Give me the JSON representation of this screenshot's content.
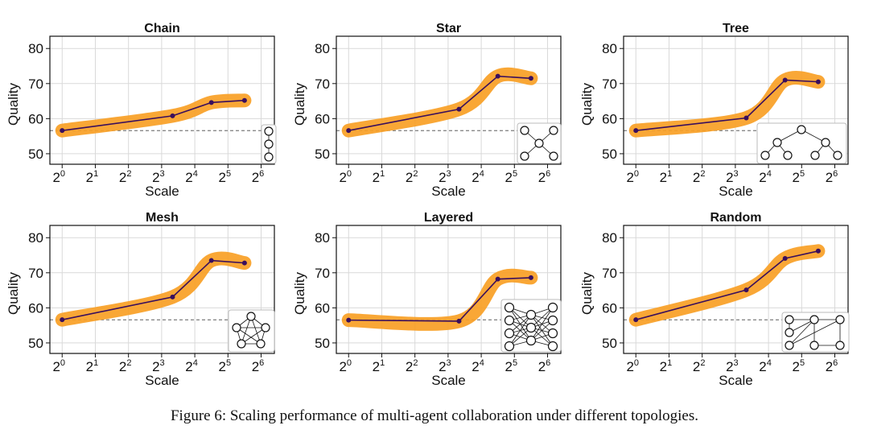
{
  "caption": "Figure 6: Scaling performance of multi-agent collaboration under different topologies.",
  "chart_data": [
    {
      "type": "line",
      "title": "Chain",
      "xlabel": "Scale",
      "ylabel": "Quality",
      "x_log2": [
        0,
        3.33,
        4.5,
        5.5
      ],
      "values": [
        56.6,
        60.8,
        64.6,
        65.2
      ],
      "baseline": 56.6,
      "xticks": [
        "0",
        "1",
        "2",
        "3",
        "4",
        "5",
        "6"
      ],
      "yticks": [
        50,
        60,
        70,
        80
      ],
      "ylim": [
        47,
        83.5
      ],
      "grid": true
    },
    {
      "type": "line",
      "title": "Star",
      "xlabel": "Scale",
      "ylabel": "Quality",
      "x_log2": [
        0,
        3.33,
        4.5,
        5.5
      ],
      "values": [
        56.6,
        62.7,
        72.1,
        71.5
      ],
      "baseline": 56.6,
      "xticks": [
        "0",
        "1",
        "2",
        "3",
        "4",
        "5",
        "6"
      ],
      "yticks": [
        50,
        60,
        70,
        80
      ],
      "ylim": [
        47,
        83.5
      ],
      "grid": true
    },
    {
      "type": "line",
      "title": "Tree",
      "xlabel": "Scale",
      "ylabel": "Quality",
      "x_log2": [
        0,
        3.33,
        4.5,
        5.5
      ],
      "values": [
        56.6,
        60.2,
        71.0,
        70.5
      ],
      "baseline": 56.6,
      "xticks": [
        "0",
        "1",
        "2",
        "3",
        "4",
        "5",
        "6"
      ],
      "yticks": [
        50,
        60,
        70,
        80
      ],
      "ylim": [
        47,
        83.5
      ],
      "grid": true
    },
    {
      "type": "line",
      "title": "Mesh",
      "xlabel": "Scale",
      "ylabel": "Quality",
      "x_log2": [
        0,
        3.33,
        4.5,
        5.5
      ],
      "values": [
        56.6,
        63.1,
        73.5,
        72.8
      ],
      "baseline": 56.6,
      "xticks": [
        "0",
        "1",
        "2",
        "3",
        "4",
        "5",
        "6"
      ],
      "yticks": [
        50,
        60,
        70,
        80
      ],
      "ylim": [
        47,
        83.5
      ],
      "grid": true
    },
    {
      "type": "line",
      "title": "Layered",
      "xlabel": "Scale",
      "ylabel": "Quality",
      "x_log2": [
        0,
        3.33,
        4.5,
        5.5
      ],
      "values": [
        56.5,
        56.2,
        68.2,
        68.6
      ],
      "baseline": 56.6,
      "xticks": [
        "0",
        "1",
        "2",
        "3",
        "4",
        "5",
        "6"
      ],
      "yticks": [
        50,
        60,
        70,
        80
      ],
      "ylim": [
        47,
        83.5
      ],
      "grid": true
    },
    {
      "type": "line",
      "title": "Random",
      "xlabel": "Scale",
      "ylabel": "Quality",
      "x_log2": [
        0,
        3.33,
        4.5,
        5.5
      ],
      "values": [
        56.6,
        65.1,
        74.1,
        76.2
      ],
      "baseline": 56.6,
      "xticks": [
        "0",
        "1",
        "2",
        "3",
        "4",
        "5",
        "6"
      ],
      "yticks": [
        50,
        60,
        70,
        80
      ],
      "ylim": [
        47,
        83.5
      ],
      "grid": true
    }
  ],
  "colors": {
    "band": "#f99f25",
    "line": "#3a0f5c",
    "grid": "#d9d9d9"
  },
  "tick_base": "2"
}
